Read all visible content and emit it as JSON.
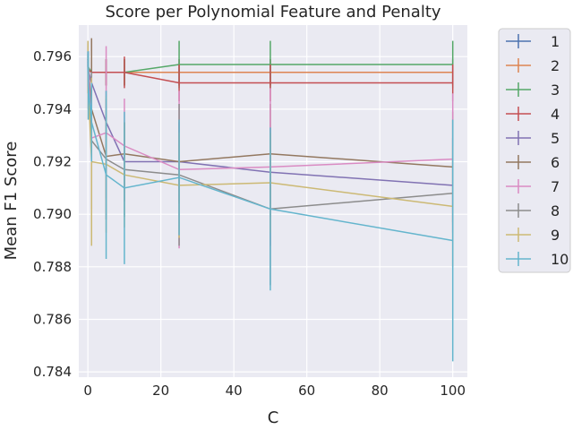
{
  "chart_data": {
    "type": "line",
    "title": "Score per Polynomial Feature and Penalty",
    "xlabel": "C",
    "ylabel": "Mean F1 Score",
    "xlim": [
      -2.5,
      104
    ],
    "ylim": [
      0.7838,
      0.7972
    ],
    "xticks": [
      0,
      20,
      40,
      60,
      80,
      100
    ],
    "xtick_labels": [
      "0",
      "20",
      "40",
      "60",
      "80",
      "100"
    ],
    "yticks": [
      0.784,
      0.786,
      0.788,
      0.79,
      0.792,
      0.794,
      0.796
    ],
    "ytick_labels": [
      "0.784",
      "0.786",
      "0.788",
      "0.790",
      "0.792",
      "0.794",
      "0.796"
    ],
    "grid": true,
    "background": "#EAEAF2",
    "legend_position": "outside-right",
    "x": [
      0.01,
      0.1,
      1,
      5,
      10,
      25,
      50,
      100
    ],
    "series": [
      {
        "name": "1",
        "color": "#4C72B0",
        "values": [
          0.7959,
          0.7955,
          0.7954,
          0.7954,
          0.7954,
          0.7954,
          0.7954,
          0.7954
        ],
        "err": [
          0.0003,
          0.0003,
          0.0004,
          0.0005,
          0.0005,
          0.0005,
          0.0005,
          0.0005
        ]
      },
      {
        "name": "2",
        "color": "#DD8452",
        "values": [
          0.7959,
          0.7955,
          0.7954,
          0.7954,
          0.7954,
          0.7954,
          0.7954,
          0.7954
        ],
        "err": [
          0.0003,
          0.0003,
          0.0004,
          0.0005,
          0.0005,
          0.0005,
          0.0005,
          0.0005
        ]
      },
      {
        "name": "3",
        "color": "#55A868",
        "values": [
          0.7959,
          0.7956,
          0.7954,
          0.7954,
          0.7954,
          0.7957,
          0.7957,
          0.7957
        ],
        "err": [
          0.0003,
          0.0003,
          0.0004,
          0.0005,
          0.0005,
          0.0009,
          0.0009,
          0.0009
        ]
      },
      {
        "name": "4",
        "color": "#C44E52",
        "values": [
          0.7959,
          0.7955,
          0.7954,
          0.7954,
          0.7954,
          0.795,
          0.795,
          0.795
        ],
        "err": [
          0.0003,
          0.0003,
          0.0004,
          0.0005,
          0.0006,
          0.0007,
          0.0007,
          0.0007
        ]
      },
      {
        "name": "5",
        "color": "#8172B3",
        "values": [
          0.7958,
          0.7955,
          0.795,
          0.7935,
          0.792,
          0.792,
          0.7916,
          0.7911
        ],
        "err": [
          0.0003,
          0.0004,
          0.0008,
          0.0012,
          0.0015,
          0.0015,
          0.0017,
          0.0018
        ]
      },
      {
        "name": "6",
        "color": "#937860",
        "values": [
          0.796,
          0.7957,
          0.794,
          0.7922,
          0.7923,
          0.792,
          0.7923,
          0.7918
        ],
        "err": [
          0.0005,
          0.0005,
          0.0027,
          0.0016,
          0.0012,
          0.0016,
          0.0019,
          0.0021
        ]
      },
      {
        "name": "7",
        "color": "#DA8BC3",
        "values": [
          0.796,
          0.7958,
          0.7929,
          0.7931,
          0.7926,
          0.7917,
          0.7918,
          0.7921
        ],
        "err": [
          0.0004,
          0.0004,
          0.0015,
          0.0033,
          0.0018,
          0.003,
          0.003,
          0.0025
        ]
      },
      {
        "name": "8",
        "color": "#8C8C8C",
        "values": [
          0.7957,
          0.795,
          0.7928,
          0.7921,
          0.7917,
          0.7915,
          0.7902,
          0.7908
        ],
        "err": [
          0.0004,
          0.001,
          0.0026,
          0.0023,
          0.0018,
          0.0027,
          0.0029,
          0.0028
        ]
      },
      {
        "name": "9",
        "color": "#CCB974",
        "values": [
          0.7956,
          0.7948,
          0.792,
          0.7919,
          0.7915,
          0.7911,
          0.7912,
          0.7903
        ],
        "err": [
          0.001,
          0.0012,
          0.0032,
          0.0026,
          0.002,
          0.002,
          0.0019,
          0.0023
        ]
      },
      {
        "name": "10",
        "color": "#64B5CD",
        "values": [
          0.7958,
          0.7949,
          0.7935,
          0.7915,
          0.791,
          0.7914,
          0.7902,
          0.789
        ],
        "err": [
          0.0004,
          0.0013,
          0.0015,
          0.0032,
          0.0029,
          0.0022,
          0.0031,
          0.0046
        ]
      }
    ]
  }
}
